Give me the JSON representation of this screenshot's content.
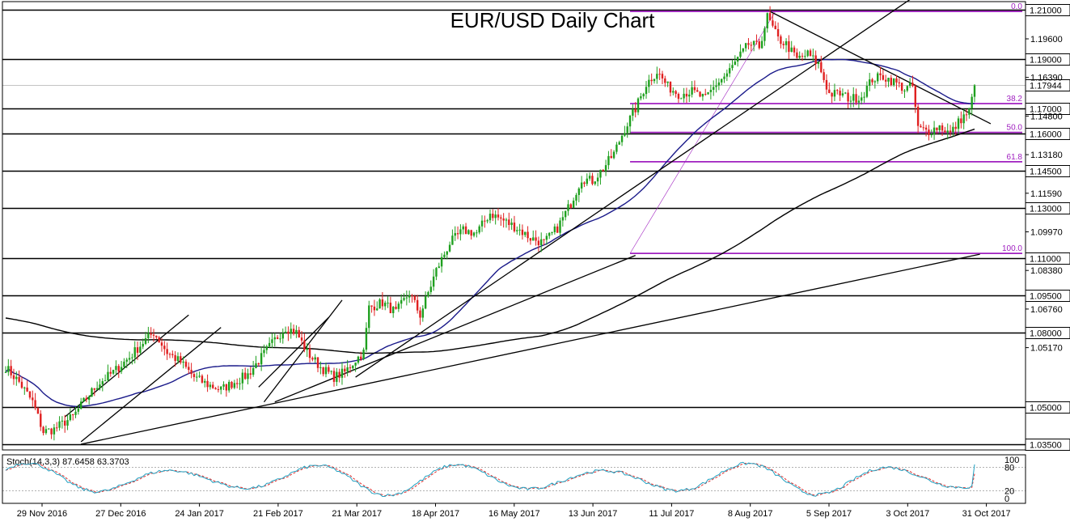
{
  "chart_data": {
    "type": "candlestick",
    "title": "EUR/USD Daily Chart",
    "y_range": [
      1.0327,
      1.2125
    ],
    "price_ticks": [
      "1.19600",
      "1.16390",
      "1.14800",
      "1.13180",
      "1.11590",
      "1.09970",
      "1.08380",
      "1.06760",
      "1.05170"
    ],
    "horizontal_levels": [
      {
        "label": "1.21000",
        "value": 1.21
      },
      {
        "label": "1.19000",
        "value": 1.19
      },
      {
        "label": "1.17000",
        "value": 1.17
      },
      {
        "label": "1.16000",
        "value": 1.16
      },
      {
        "label": "1.14500",
        "value": 1.145
      },
      {
        "label": "1.13000",
        "value": 1.13
      },
      {
        "label": "1.11000",
        "value": 1.11
      },
      {
        "label": "1.09500",
        "value": 1.095
      },
      {
        "label": "1.08000",
        "value": 1.08
      },
      {
        "label": "1.05000",
        "value": 1.05
      },
      {
        "label": "1.03500",
        "value": 1.035
      }
    ],
    "current_price": {
      "label": "1.17944",
      "value": 1.17944
    },
    "fib_levels": [
      {
        "label": "0.0",
        "value": 1.2092
      },
      {
        "label": "38.2",
        "value": 1.1721
      },
      {
        "label": "50.0",
        "value": 1.1605
      },
      {
        "label": "61.8",
        "value": 1.1487
      },
      {
        "label": "100.0",
        "value": 1.1118
      }
    ],
    "date_labels": [
      "29 Nov 2016",
      "27 Dec 2016",
      "24 Jan 2017",
      "21 Feb 2017",
      "21 Mar 2017",
      "18 Apr 2017",
      "16 May 2017",
      "13 Jun 2017",
      "11 Jul 2017",
      "8 Aug 2017",
      "5 Sep 2017",
      "3 Oct 2017",
      "31 Oct 2017"
    ],
    "price_path": [
      [
        0,
        1.066
      ],
      [
        5,
        1.06
      ],
      [
        10,
        1.052
      ],
      [
        14,
        1.04
      ],
      [
        18,
        1.041
      ],
      [
        22,
        1.044
      ],
      [
        25,
        1.046
      ],
      [
        29,
        1.052
      ],
      [
        34,
        1.059
      ],
      [
        40,
        1.064
      ],
      [
        46,
        1.07
      ],
      [
        51,
        1.076
      ],
      [
        55,
        1.08
      ],
      [
        60,
        1.072
      ],
      [
        65,
        1.068
      ],
      [
        70,
        1.062
      ],
      [
        75,
        1.059
      ],
      [
        80,
        1.057
      ],
      [
        85,
        1.06
      ],
      [
        90,
        1.063
      ],
      [
        95,
        1.07
      ],
      [
        100,
        1.077
      ],
      [
        104,
        1.082
      ],
      [
        108,
        1.08
      ],
      [
        112,
        1.072
      ],
      [
        117,
        1.066
      ],
      [
        122,
        1.062
      ],
      [
        126,
        1.064
      ],
      [
        130,
        1.069
      ],
      [
        133,
        1.072
      ],
      [
        135,
        1.09
      ],
      [
        140,
        1.092
      ],
      [
        145,
        1.088
      ],
      [
        150,
        1.096
      ],
      [
        154,
        1.087
      ],
      [
        157,
        1.096
      ],
      [
        160,
        1.105
      ],
      [
        165,
        1.116
      ],
      [
        170,
        1.121
      ],
      [
        175,
        1.12
      ],
      [
        180,
        1.128
      ],
      [
        185,
        1.125
      ],
      [
        190,
        1.122
      ],
      [
        195,
        1.118
      ],
      [
        200,
        1.116
      ],
      [
        205,
        1.122
      ],
      [
        210,
        1.132
      ],
      [
        214,
        1.142
      ],
      [
        218,
        1.141
      ],
      [
        222,
        1.146
      ],
      [
        226,
        1.152
      ],
      [
        230,
        1.162
      ],
      [
        234,
        1.17
      ],
      [
        238,
        1.18
      ],
      [
        242,
        1.185
      ],
      [
        246,
        1.179
      ],
      [
        250,
        1.176
      ],
      [
        255,
        1.177
      ],
      [
        260,
        1.174
      ],
      [
        264,
        1.18
      ],
      [
        268,
        1.184
      ],
      [
        272,
        1.19
      ],
      [
        276,
        1.196
      ],
      [
        280,
        1.195
      ],
      [
        283,
        1.207
      ],
      [
        287,
        1.198
      ],
      [
        290,
        1.196
      ],
      [
        294,
        1.19
      ],
      [
        298,
        1.192
      ],
      [
        302,
        1.188
      ],
      [
        306,
        1.176
      ],
      [
        310,
        1.176
      ],
      [
        314,
        1.174
      ],
      [
        318,
        1.175
      ],
      [
        322,
        1.182
      ],
      [
        326,
        1.183
      ],
      [
        330,
        1.181
      ],
      [
        334,
        1.178
      ],
      [
        337,
        1.179
      ],
      [
        339,
        1.162
      ],
      [
        343,
        1.161
      ],
      [
        347,
        1.163
      ],
      [
        351,
        1.16
      ],
      [
        355,
        1.166
      ],
      [
        358,
        1.169
      ],
      [
        360,
        1.1794
      ]
    ],
    "indicator": {
      "label": "Stoch(14,3,3) 87.6458 63.3703",
      "k_last": 87.6458,
      "d_last": 63.3703,
      "levels": [
        "100",
        "80",
        "20",
        "0"
      ],
      "colors": {
        "k": "#20a0c0",
        "d": "#e03030",
        "guides": "#999999"
      }
    },
    "colors": {
      "bull": "#1fa01f",
      "bear": "#e02020",
      "ma50": "#1a1a8a",
      "ma200": "#000000",
      "fib": "#a020c0",
      "level": "#000000",
      "current": "#888888"
    }
  }
}
